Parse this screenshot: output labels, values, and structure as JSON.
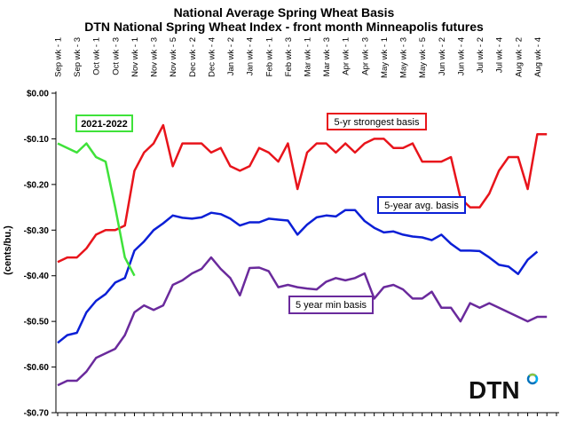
{
  "chart_data": {
    "type": "line",
    "title": "National Average Spring Wheat Basis",
    "subtitle": "DTN National Spring Wheat Index - front month Minneapolis futures",
    "ylabel": "(cents/bu.)",
    "xlabel": "",
    "ylim": [
      -0.7,
      0.0
    ],
    "yticks": [
      0.0,
      -0.1,
      -0.2,
      -0.3,
      -0.4,
      -0.5,
      -0.6,
      -0.7
    ],
    "ytick_labels": [
      "$0.00",
      "-$0.10",
      "-$0.20",
      "-$0.30",
      "-$0.40",
      "-$0.50",
      "-$0.60",
      "-$0.70"
    ],
    "grid": false,
    "x_count": 53,
    "x_tick_labels": [
      "Sep wk - 1",
      "Sep wk - 3",
      "Oct wk - 1",
      "Oct wk - 3",
      "Nov wk - 1",
      "Nov wk - 3",
      "Nov wk - 5",
      "Dec wk - 2",
      "Dec wk - 4",
      "Jan wk - 2",
      "Jan wk - 4",
      "Feb wk - 1",
      "Feb wk - 3",
      "Mar wk - 1",
      "Mar wk - 3",
      "Apr wk - 1",
      "Apr wk - 3",
      "May wk - 1",
      "May wk - 3",
      "May wk - 5",
      "Jun wk - 2",
      "Jun wk - 4",
      "Jul wk - 2",
      "Jul wk - 4",
      "Aug wk - 2",
      "Aug wk - 4"
    ],
    "series": [
      {
        "name": "5-yr strongest basis",
        "color": "#e8141b",
        "values": [
          -0.37,
          -0.36,
          -0.36,
          -0.34,
          -0.31,
          -0.3,
          -0.3,
          -0.29,
          -0.17,
          -0.13,
          -0.11,
          -0.07,
          -0.16,
          -0.11,
          -0.11,
          -0.11,
          -0.13,
          -0.12,
          -0.16,
          -0.17,
          -0.16,
          -0.12,
          -0.13,
          -0.15,
          -0.11,
          -0.21,
          -0.13,
          -0.11,
          -0.11,
          -0.13,
          -0.11,
          -0.13,
          -0.11,
          -0.1,
          -0.1,
          -0.12,
          -0.12,
          -0.11,
          -0.15,
          -0.15,
          -0.15,
          -0.14,
          -0.23,
          -0.25,
          -0.25,
          -0.22,
          -0.17,
          -0.14,
          -0.14,
          -0.21,
          -0.09,
          -0.09
        ]
      },
      {
        "name": "5-year avg. basis",
        "color": "#0b1fd6",
        "values": [
          -0.547,
          -0.53,
          -0.525,
          -0.48,
          -0.455,
          -0.44,
          -0.415,
          -0.405,
          -0.345,
          -0.325,
          -0.3,
          -0.285,
          -0.268,
          -0.273,
          -0.275,
          -0.272,
          -0.262,
          -0.265,
          -0.275,
          -0.29,
          -0.283,
          -0.283,
          -0.275,
          -0.277,
          -0.279,
          -0.31,
          -0.288,
          -0.272,
          -0.268,
          -0.27,
          -0.256,
          -0.256,
          -0.28,
          -0.295,
          -0.305,
          -0.303,
          -0.31,
          -0.314,
          -0.316,
          -0.322,
          -0.31,
          -0.33,
          -0.345,
          -0.345,
          -0.346,
          -0.36,
          -0.376,
          -0.38,
          -0.396,
          -0.365,
          -0.347
        ]
      },
      {
        "name": "5 year min basis",
        "color": "#6a2a9c",
        "values": [
          -0.64,
          -0.63,
          -0.63,
          -0.61,
          -0.58,
          -0.57,
          -0.56,
          -0.53,
          -0.48,
          -0.465,
          -0.475,
          -0.465,
          -0.42,
          -0.41,
          -0.395,
          -0.385,
          -0.36,
          -0.385,
          -0.405,
          -0.443,
          -0.383,
          -0.382,
          -0.39,
          -0.425,
          -0.42,
          -0.425,
          -0.428,
          -0.43,
          -0.413,
          -0.405,
          -0.41,
          -0.405,
          -0.395,
          -0.45,
          -0.425,
          -0.42,
          -0.43,
          -0.45,
          -0.45,
          -0.435,
          -0.47,
          -0.47,
          -0.5,
          -0.46,
          -0.47,
          -0.46,
          -0.47,
          -0.48,
          -0.49,
          -0.5,
          -0.49,
          -0.49
        ]
      },
      {
        "name": "2021-2022",
        "color": "#3fe23a",
        "values": [
          -0.11,
          -0.12,
          -0.13,
          -0.11,
          -0.14,
          -0.15,
          -0.25,
          -0.36,
          -0.4
        ]
      }
    ],
    "annotations": {
      "strongest": "5-yr strongest basis",
      "avg": "5-year avg. basis",
      "min": "5 year min basis",
      "current": "2021-2022"
    }
  },
  "logo": {
    "text": "DTN",
    "colors": [
      "#8dc63f",
      "#00aeef",
      "#0072bc"
    ]
  }
}
